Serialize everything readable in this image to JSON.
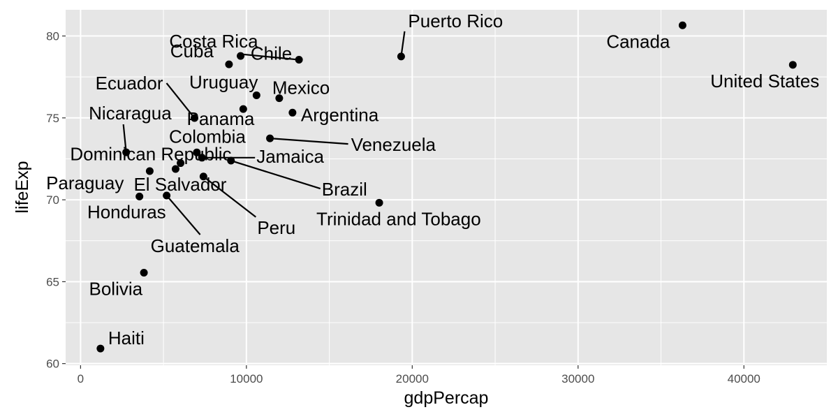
{
  "chart_data": {
    "type": "scatter",
    "title": "",
    "xlabel": "gdpPercap",
    "ylabel": "lifeExp",
    "xlim": [
      -900,
      45000
    ],
    "ylim": [
      59.9,
      81.6
    ],
    "x_ticks": [
      0,
      10000,
      20000,
      30000,
      40000
    ],
    "y_ticks": [
      60,
      65,
      70,
      75,
      80
    ],
    "grid": true,
    "legend": "none",
    "colors": {
      "panel": "#e6e6e6",
      "grid": "#ffffff",
      "point": "#000000",
      "text": "#000000",
      "tick_text": "#4d4d4d"
    },
    "points": [
      {
        "label": "Canada",
        "x": 36300,
        "y": 80.65
      },
      {
        "label": "United States",
        "x": 42950,
        "y": 78.24
      },
      {
        "label": "Puerto Rico",
        "x": 19330,
        "y": 78.75
      },
      {
        "label": "Chile",
        "x": 13170,
        "y": 78.55
      },
      {
        "label": "Costa Rica",
        "x": 9650,
        "y": 78.78
      },
      {
        "label": "Cuba",
        "x": 8950,
        "y": 78.27
      },
      {
        "label": "Uruguay",
        "x": 10610,
        "y": 76.38
      },
      {
        "label": "Mexico",
        "x": 11980,
        "y": 76.2
      },
      {
        "label": "Panama",
        "x": 9810,
        "y": 75.54
      },
      {
        "label": "Argentina",
        "x": 12780,
        "y": 75.32
      },
      {
        "label": "Ecuador",
        "x": 6870,
        "y": 74.99
      },
      {
        "label": "Venezuela",
        "x": 11420,
        "y": 73.75
      },
      {
        "label": "Nicaragua",
        "x": 2750,
        "y": 72.9
      },
      {
        "label": "Colombia",
        "x": 7010,
        "y": 72.89
      },
      {
        "label": "Dominican Republic",
        "x": 6030,
        "y": 72.24
      },
      {
        "label": "Jamaica",
        "x": 7320,
        "y": 72.57
      },
      {
        "label": "Brazil",
        "x": 9070,
        "y": 72.39
      },
      {
        "label": "Paraguay",
        "x": 4170,
        "y": 71.75
      },
      {
        "label": "El Salvador",
        "x": 5730,
        "y": 71.88
      },
      {
        "label": "Peru",
        "x": 7410,
        "y": 71.42
      },
      {
        "label": "Trinidad and Tobago",
        "x": 18010,
        "y": 69.82
      },
      {
        "label": "Honduras",
        "x": 3550,
        "y": 70.2
      },
      {
        "label": "Guatemala",
        "x": 5190,
        "y": 70.26
      },
      {
        "label": "Bolivia",
        "x": 3820,
        "y": 65.55
      },
      {
        "label": "Haiti",
        "x": 1200,
        "y": 60.92
      }
    ]
  }
}
